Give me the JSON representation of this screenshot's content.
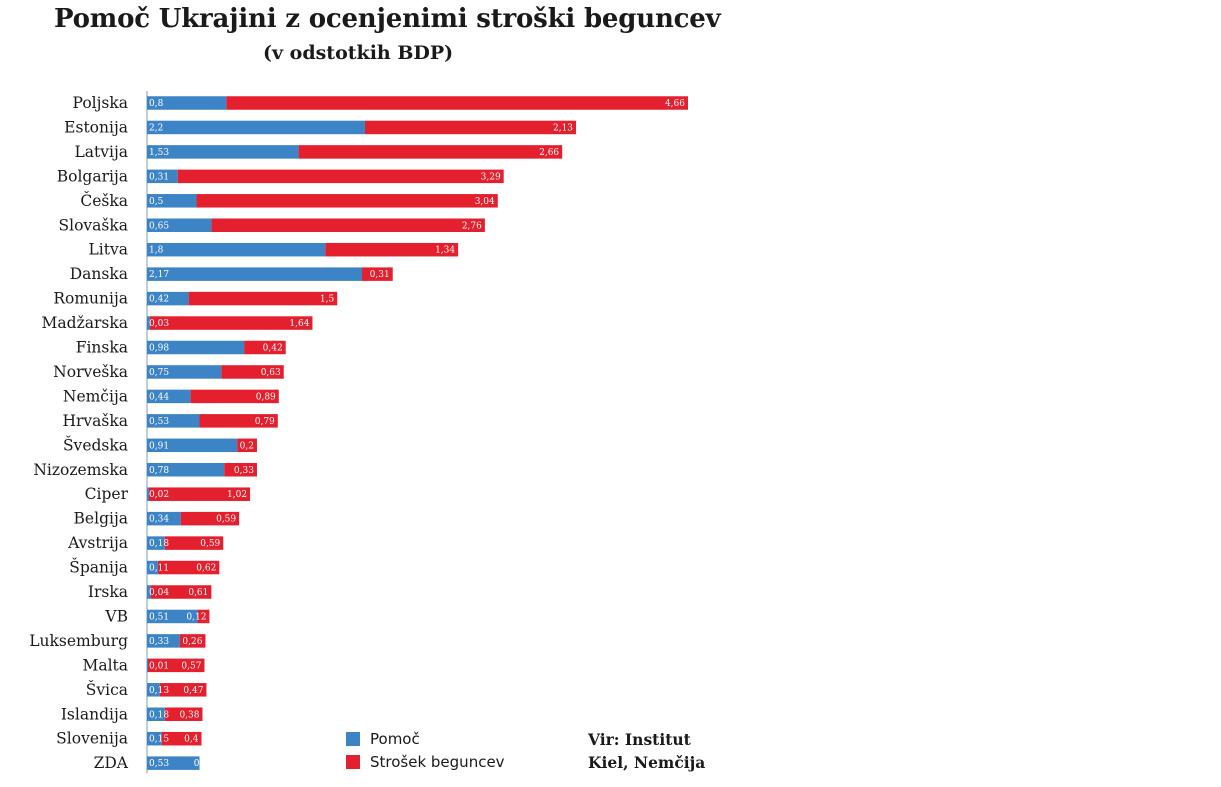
{
  "title": "Pomoč Ukrajini z ocenjenimi stroški beguncev",
  "subtitle": "(v odstotkih BDP)",
  "source": {
    "line1": "Vir: Institut",
    "line2": "Kiel, Nemčija"
  },
  "colors": {
    "aid": "#3d84c6",
    "refugee": "#e4202e",
    "axis": "#7a9cc8"
  },
  "chart_data": {
    "type": "bar",
    "orientation": "horizontal",
    "stacked": true,
    "categories": [
      "Poljska",
      "Estonija",
      "Latvija",
      "Bolgarija",
      "Češka",
      "Slovaška",
      "Litva",
      "Danska",
      "Romunija",
      "Madžarska",
      "Finska",
      "Norveška",
      "Nemčija",
      "Hrvaška",
      "Švedska",
      "Nizozemska",
      "Ciper",
      "Belgija",
      "Avstrija",
      "Španija",
      "Irska",
      "VB",
      "Luksemburg",
      "Malta",
      "Švica",
      "Islandija",
      "Slovenija",
      "ZDA"
    ],
    "series": [
      {
        "name": "Pomoč",
        "values": [
          0.8,
          2.2,
          1.53,
          0.31,
          0.5,
          0.65,
          1.8,
          2.17,
          0.42,
          0.03,
          0.98,
          0.75,
          0.44,
          0.53,
          0.91,
          0.78,
          0.02,
          0.34,
          0.18,
          0.11,
          0.04,
          0.51,
          0.33,
          0.01,
          0.13,
          0.18,
          0.15,
          0.53
        ]
      },
      {
        "name": "Strošek beguncev",
        "values": [
          4.66,
          2.13,
          2.66,
          3.29,
          3.04,
          2.76,
          1.34,
          0.31,
          1.5,
          1.64,
          0.42,
          0.63,
          0.89,
          0.79,
          0.2,
          0.33,
          1.02,
          0.59,
          0.59,
          0.62,
          0.61,
          0.12,
          0.26,
          0.57,
          0.47,
          0.38,
          0.4,
          0
        ]
      }
    ],
    "value_labels": {
      "aid": [
        "0,8",
        "2,2",
        "1,53",
        "0,31",
        "0,5",
        "0,65",
        "1,8",
        "2,17",
        "0,42",
        "0,03",
        "0,98",
        "0,75",
        "0,44",
        "0,53",
        "0,91",
        "0,78",
        "0,02",
        "0,34",
        "0,18",
        "0,11",
        "0,04",
        "0,51",
        "0,33",
        "0,01",
        "0,13",
        "0,18",
        "0,15",
        "0,53"
      ],
      "refugee": [
        "4,66",
        "2,13",
        "2,66",
        "3,29",
        "3,04",
        "2,76",
        "1,34",
        "0,31",
        "1,5",
        "1,64",
        "0,42",
        "0,63",
        "0,89",
        "0,79",
        "0,2",
        "0,33",
        "1,02",
        "0,59",
        "0,59",
        "0,62",
        "0,61",
        "0,12",
        "0,26",
        "0,57",
        "0,47",
        "0,38",
        "0,4",
        "0"
      ]
    },
    "xlim": [
      0,
      5.46
    ],
    "grid": false,
    "legend": "bottom-center"
  }
}
